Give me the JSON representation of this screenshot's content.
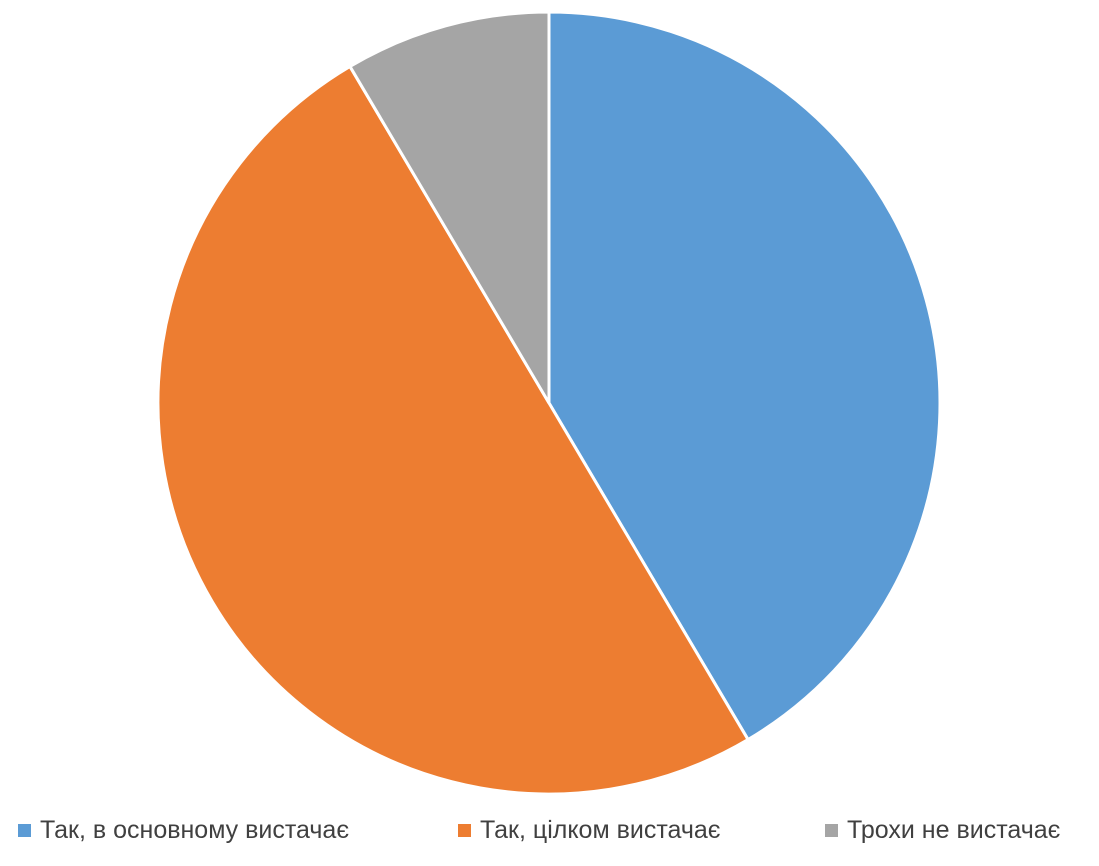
{
  "chart_data": {
    "type": "pie",
    "categories": [
      "Так, в основному вистачає",
      "Так, цілком вистачає",
      "Трохи не вистачає"
    ],
    "values": [
      41.5,
      50,
      8.5
    ],
    "colors": [
      "#5B9BD5",
      "#ED7D31",
      "#A5A5A5"
    ],
    "start_angle_deg": 0,
    "direction": "clockwise",
    "legend_position": "bottom",
    "slice_border_color": "#FFFFFF"
  }
}
